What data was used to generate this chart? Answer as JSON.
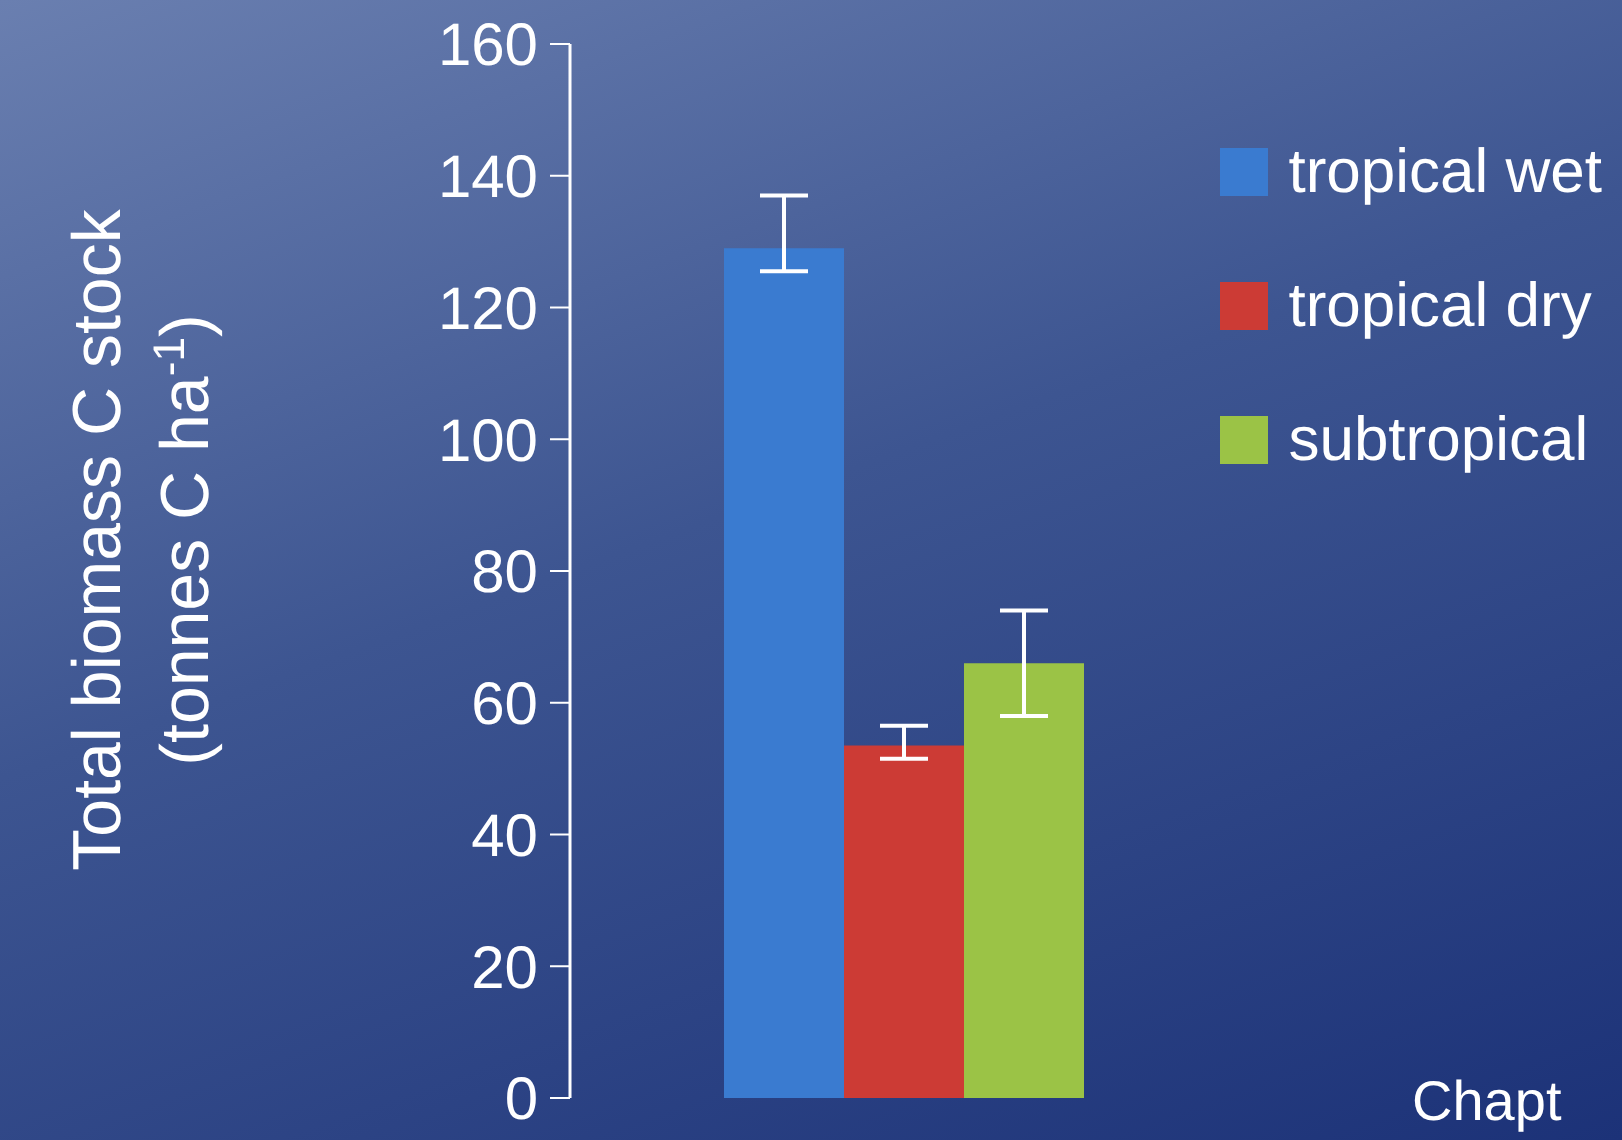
{
  "chart_data": {
    "type": "bar",
    "categories": [
      null
    ],
    "series": [
      {
        "name": "tropical wet",
        "color": "#3a7bd0",
        "values": [
          129
        ],
        "errors": [
          [
            125.5,
            137
          ]
        ]
      },
      {
        "name": "tropical dry",
        "color": "#cc3b35",
        "values": [
          53.5
        ],
        "errors": [
          [
            51.5,
            56.5
          ]
        ]
      },
      {
        "name": "subtropical",
        "color": "#9bc346",
        "values": [
          66
        ],
        "errors": [
          [
            58,
            74
          ]
        ]
      }
    ],
    "ylabel": "Total  biomass C stock\n(tonnes C ha$^{-1}$)",
    "ylim": [
      0,
      160
    ],
    "yticks": [
      0,
      20,
      40,
      60,
      80,
      100,
      120,
      140,
      160
    ],
    "legend": "top right",
    "annotations": [
      "Chapt"
    ]
  }
}
